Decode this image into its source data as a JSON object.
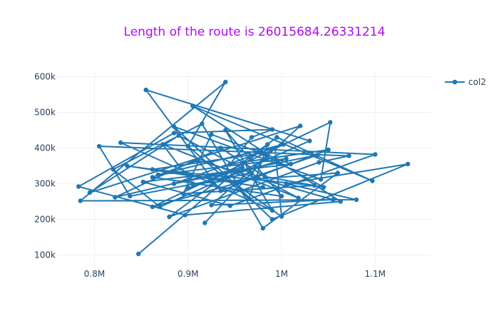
{
  "chart_data": {
    "type": "line",
    "title": "Length of the route is 26015684.26331214",
    "title_color": "#b10ce9",
    "xlabel": "",
    "ylabel": "",
    "xlim": [
      760000,
      1160000
    ],
    "ylim": [
      75000,
      615000
    ],
    "x_ticks": [
      {
        "value": 800000,
        "label": "0.8M"
      },
      {
        "value": 900000,
        "label": "0.9M"
      },
      {
        "value": 1000000,
        "label": "1M"
      },
      {
        "value": 1100000,
        "label": "1.1M"
      }
    ],
    "y_ticks": [
      {
        "value": 100000,
        "label": "100k"
      },
      {
        "value": 200000,
        "label": "200k"
      },
      {
        "value": 300000,
        "label": "300k"
      },
      {
        "value": 400000,
        "label": "400k"
      },
      {
        "value": 500000,
        "label": "500k"
      },
      {
        "value": 600000,
        "label": "600k"
      }
    ],
    "grid": true,
    "legend_position": "top-right",
    "series": [
      {
        "name": "col2",
        "color": "#1f77b4",
        "mode": "lines+markers",
        "x": [
          847000,
          985000,
          965000,
          900000,
          940000,
          785000,
          1080000,
          1005000,
          1135000,
          990000,
          885000,
          1042000,
          1052000,
          862000,
          950000,
          1000000,
          993000,
          918000,
          968000,
          838000,
          805000,
          1072000,
          1040000,
          880000,
          995000,
          1097000,
          905000,
          1063000,
          897000,
          783000,
          885000,
          990000,
          968000,
          945000,
          1050000,
          935000,
          855000,
          1030000,
          870000,
          820000,
          915000,
          980000,
          1060000,
          905000,
          873000,
          1018000,
          890000,
          795000,
          1020000,
          925000,
          1055000,
          910000,
          862000,
          1000000,
          940000,
          990000,
          828000,
          1100000,
          945000,
          852000,
          1010000,
          925000,
          895000,
          1035000,
          862000,
          978000,
          1045000,
          982000,
          935000,
          822000,
          958000,
          900000,
          1005000,
          868000,
          1002000,
          885000,
          1038000,
          955000,
          835000,
          980000
        ],
        "y": [
          103000,
          410000,
          258000,
          405000,
          585000,
          252000,
          255000,
          300000,
          355000,
          200000,
          460000,
          312000,
          472000,
          235000,
          300000,
          208000,
          400000,
          190000,
          330000,
          265000,
          405000,
          378000,
          360000,
          207000,
          430000,
          308000,
          518000,
          250000,
          212000,
          292000,
          442000,
          452000,
          430000,
          355000,
          395000,
          280000,
          563000,
          420000,
          235000,
          340000,
          468000,
          175000,
          330000,
          300000,
          410000,
          260000,
          435000,
          275000,
          462000,
          240000,
          255000,
          365000,
          318000,
          265000,
          450000,
          225000,
          415000,
          382000,
          238000,
          305000,
          355000,
          438000,
          272000,
          295000,
          340000,
          385000,
          290000,
          320000,
          400000,
          262000,
          345000,
          288000,
          370000,
          325000,
          410000,
          300000,
          380000,
          305000,
          350000,
          290000
        ]
      }
    ]
  }
}
